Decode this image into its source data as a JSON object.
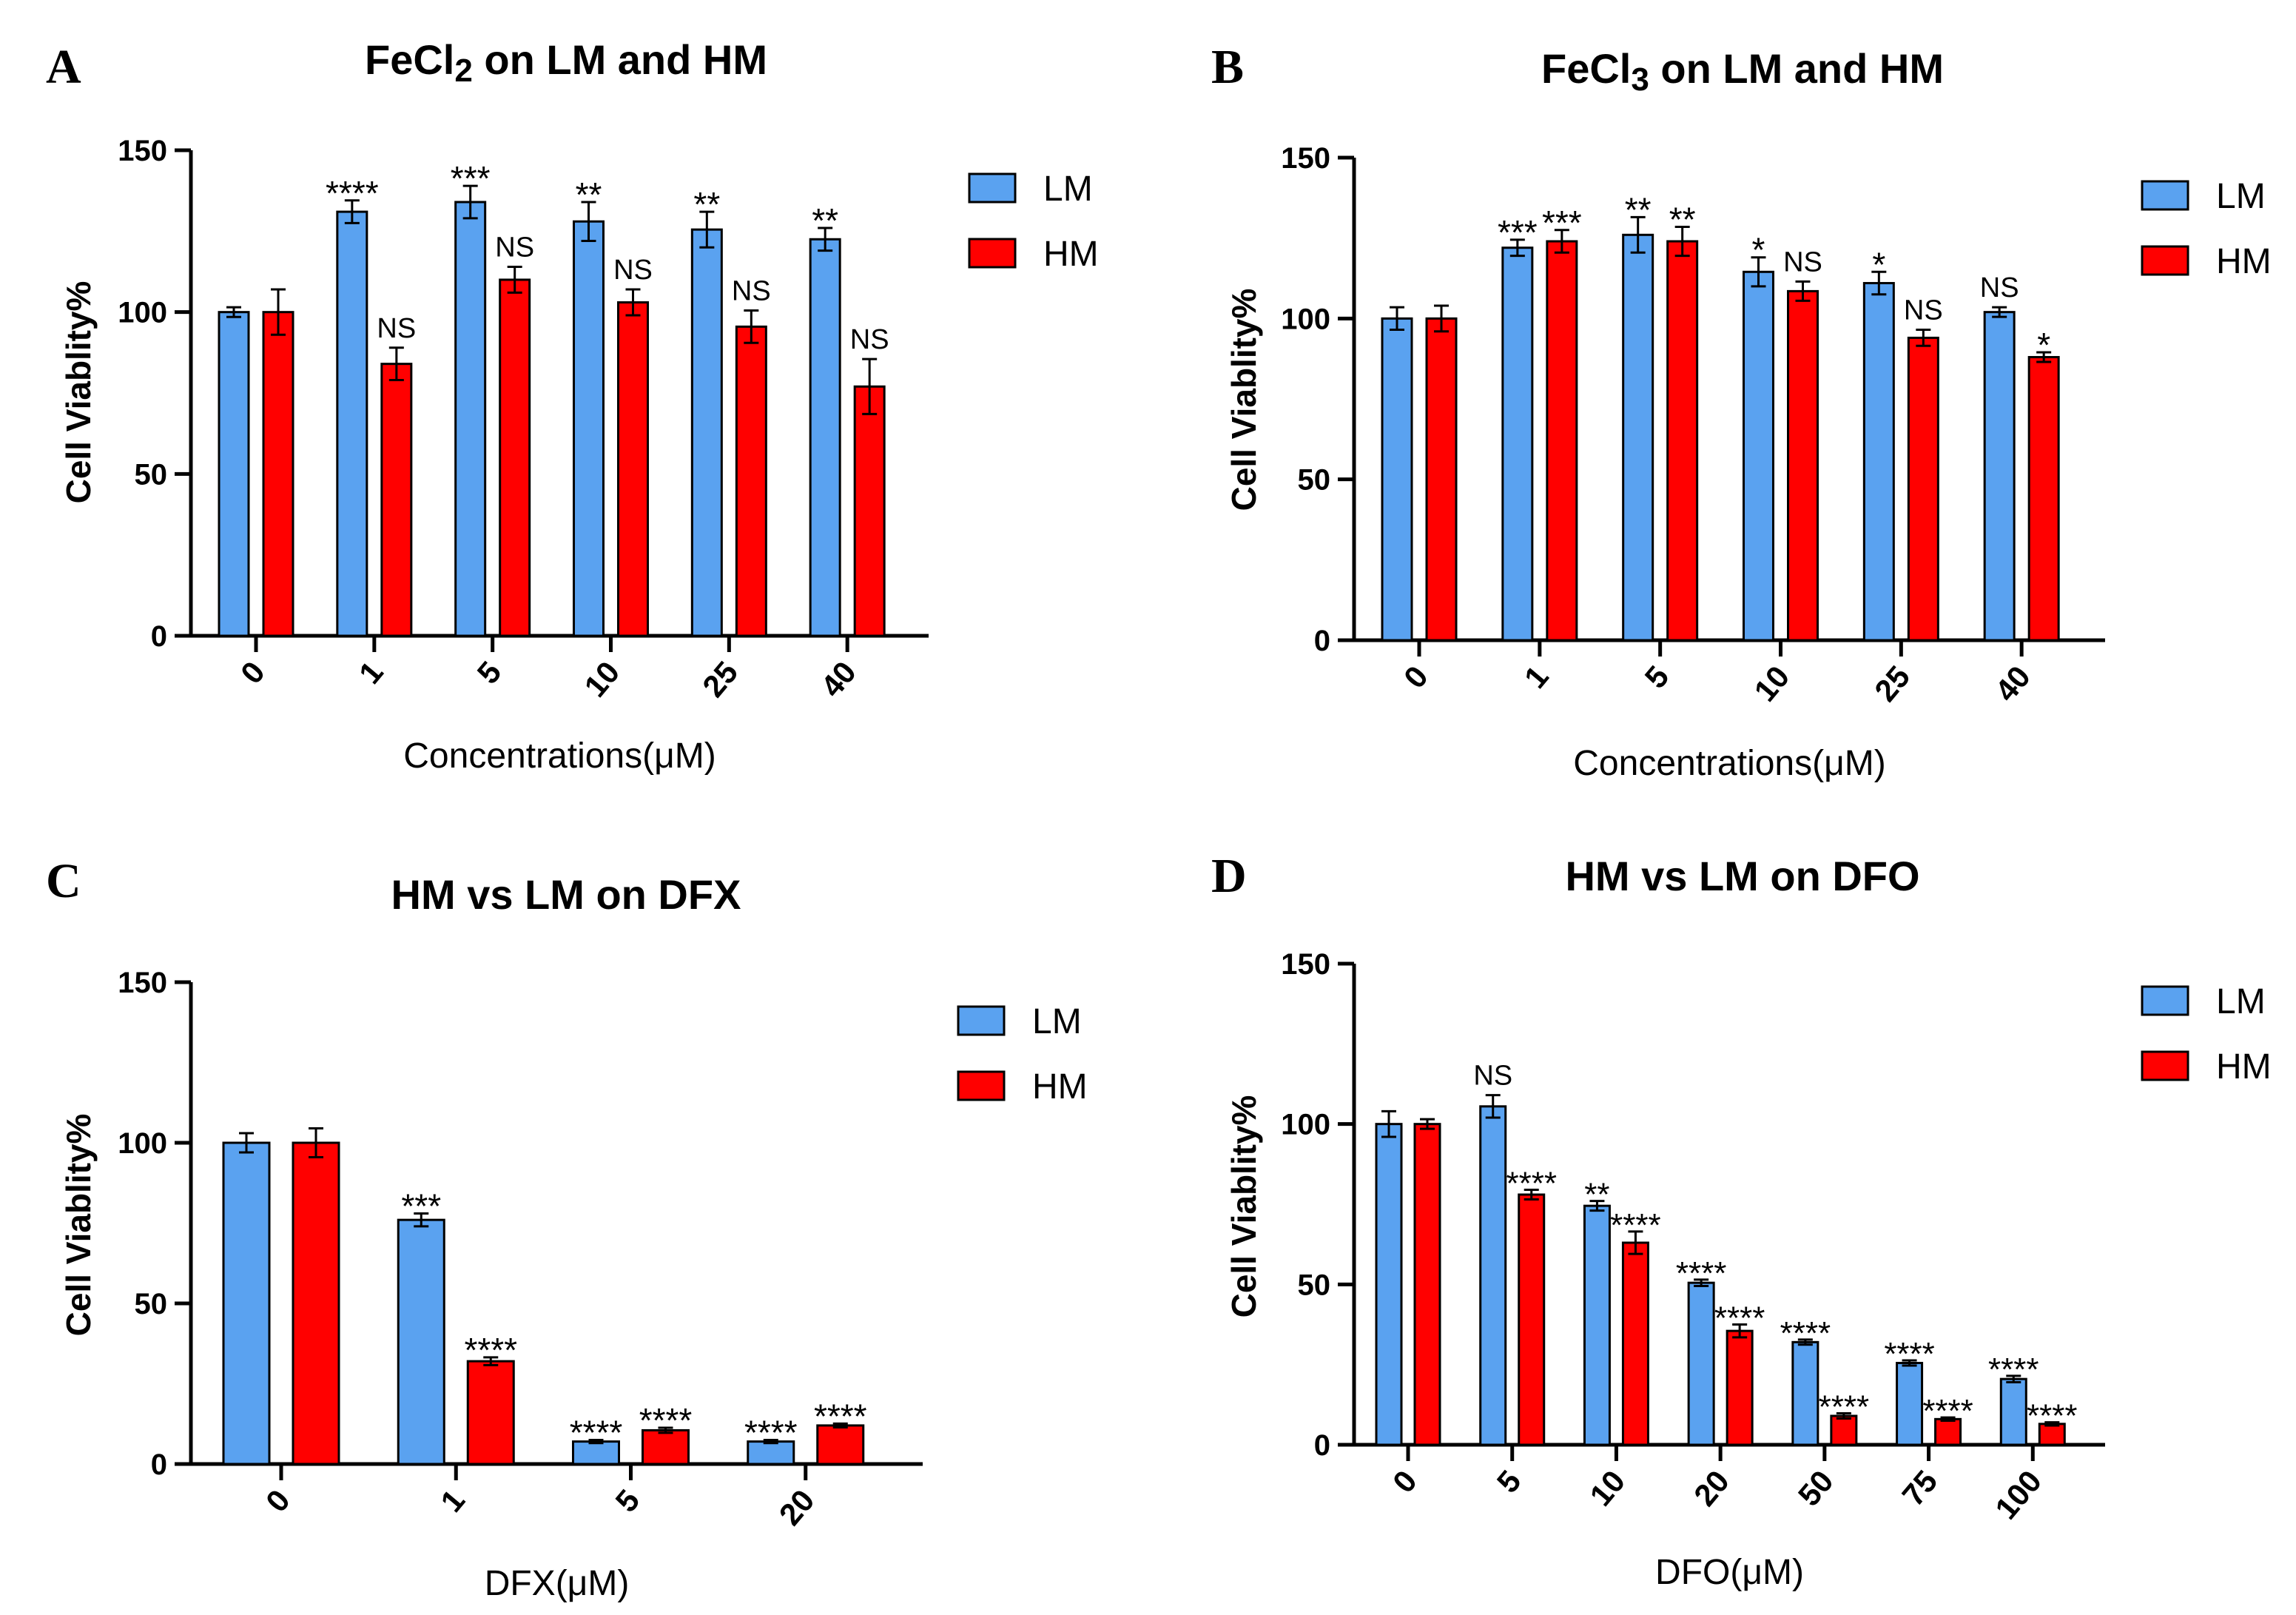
{
  "colors": {
    "lm": "#5aa2f0",
    "hm": "#ff0000",
    "stroke": "#000000"
  },
  "chart_data": [
    {
      "panel": "A",
      "type": "bar",
      "title_main": "FeCl",
      "title_sub": "2",
      "title_rest": " on LM and HM",
      "ylabel": "Cell Viablity%",
      "xlabel": "Concentrations(μM)",
      "ylim": [
        0,
        150
      ],
      "yticks": [
        "0",
        "50",
        "100",
        "150"
      ],
      "categories": [
        "0",
        "1",
        "5",
        "10",
        "25",
        "40"
      ],
      "legend": [
        "LM",
        "HM"
      ],
      "legend_position": "top-right",
      "series": [
        {
          "name": "LM",
          "values": [
            100,
            131,
            134,
            128,
            125.5,
            122.5
          ],
          "errors": [
            1.5,
            3.5,
            5,
            6,
            5.5,
            3.5
          ],
          "sig": [
            "",
            "****",
            "***",
            "**",
            "**",
            "**"
          ]
        },
        {
          "name": "HM",
          "values": [
            100,
            84,
            110,
            103,
            95.5,
            77
          ],
          "errors": [
            7,
            5,
            4,
            4,
            5,
            8.5
          ],
          "sig": [
            "",
            "NS",
            "NS",
            "NS",
            "NS",
            "NS"
          ]
        }
      ]
    },
    {
      "panel": "B",
      "type": "bar",
      "title_main": "FeCl",
      "title_sub": "3",
      "title_rest": " on LM and HM",
      "ylabel": "Cell Viablity%",
      "xlabel": "Concentrations(μM)",
      "ylim": [
        0,
        150
      ],
      "yticks": [
        "0",
        "50",
        "100",
        "150"
      ],
      "categories": [
        "0",
        "1",
        "5",
        "10",
        "25",
        "40"
      ],
      "legend": [
        "LM",
        "HM"
      ],
      "legend_position": "top-right",
      "series": [
        {
          "name": "LM",
          "values": [
            100,
            122,
            126,
            114.5,
            111,
            102
          ],
          "errors": [
            3.5,
            2.5,
            5.5,
            4.5,
            3.5,
            1.5
          ],
          "sig": [
            "",
            "***",
            "**",
            "*",
            "*",
            "NS"
          ]
        },
        {
          "name": "HM",
          "values": [
            100,
            124,
            124,
            108.5,
            94,
            88
          ],
          "errors": [
            4,
            3.5,
            4.5,
            3,
            2.5,
            1.5
          ],
          "sig": [
            "",
            "***",
            "**",
            "NS",
            "NS",
            "*"
          ]
        }
      ]
    },
    {
      "panel": "C",
      "type": "bar",
      "title_main": "HM vs LM on DFX",
      "title_sub": "",
      "title_rest": "",
      "ylabel": "Cell Viablity%",
      "xlabel": "DFX(μM)",
      "ylim": [
        0,
        150
      ],
      "yticks": [
        "0",
        "50",
        "100",
        "150"
      ],
      "categories": [
        "0",
        "1",
        "5",
        "20"
      ],
      "legend": [
        "LM",
        "HM"
      ],
      "legend_position": "top-right",
      "series": [
        {
          "name": "LM",
          "values": [
            100,
            76,
            7,
            7
          ],
          "errors": [
            3,
            2,
            0.5,
            0.5
          ],
          "sig": [
            "",
            "***",
            "****",
            "****"
          ]
        },
        {
          "name": "HM",
          "values": [
            100,
            32,
            10.5,
            12
          ],
          "errors": [
            4.5,
            1.2,
            0.8,
            0.6
          ],
          "sig": [
            "",
            "****",
            "****",
            "****"
          ]
        }
      ]
    },
    {
      "panel": "D",
      "type": "bar",
      "title_main": "HM vs LM on DFO",
      "title_sub": "",
      "title_rest": "",
      "ylabel": "Cell Viablity%",
      "xlabel": "DFO(μM)",
      "ylim": [
        0,
        150
      ],
      "yticks": [
        "0",
        "50",
        "100",
        "150"
      ],
      "categories": [
        "0",
        "5",
        "10",
        "20",
        "50",
        "75",
        "100"
      ],
      "legend": [
        "LM",
        "HM"
      ],
      "legend_position": "top-right",
      "series": [
        {
          "name": "LM",
          "values": [
            100,
            105.5,
            74.5,
            50.5,
            32,
            25.5,
            20.5
          ],
          "errors": [
            4,
            3.5,
            1.5,
            1,
            0.8,
            0.8,
            1
          ],
          "sig": [
            "",
            "NS",
            "**",
            "****",
            "****",
            "****",
            "****"
          ]
        },
        {
          "name": "HM",
          "values": [
            100,
            78,
            63,
            35.5,
            9,
            8,
            6.5
          ],
          "errors": [
            1.5,
            1.5,
            3.5,
            2,
            0.8,
            0.5,
            0.5
          ],
          "sig": [
            "",
            "****",
            "****",
            "****",
            "****",
            "****",
            "****"
          ]
        }
      ]
    }
  ]
}
